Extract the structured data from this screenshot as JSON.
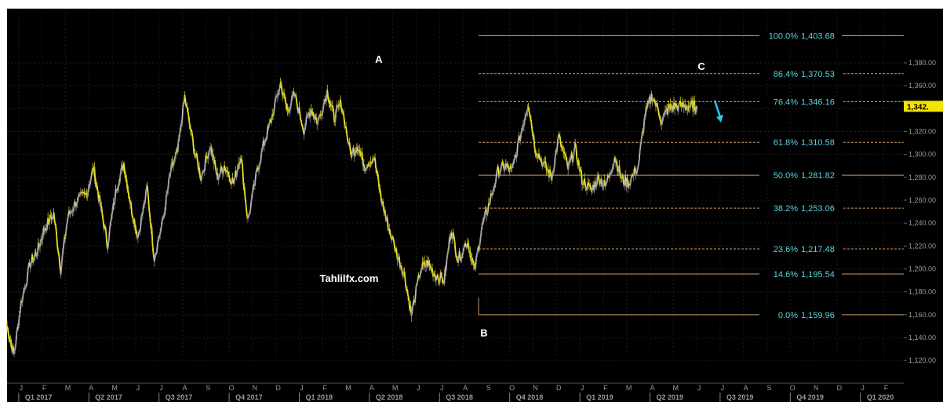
{
  "chart_data": {
    "type": "line",
    "title": "",
    "xlabel": "",
    "ylabel": "",
    "ylim": [
      1110,
      1415
    ],
    "grid": true,
    "colors": {
      "background": "#000000",
      "price_up": "#f2e82a",
      "price_down": "#bdbdbd",
      "fib_line": "#c89a6a",
      "fib_label": "#5fd0e0",
      "axis_text": "#9a9a9a",
      "last_price_box": "#f5e400",
      "arrow": "#2ec8e8",
      "watermark": "#ffffff"
    },
    "y_ticks": [
      "1,120.00",
      "1,140.00",
      "1,160.00",
      "1,180.00",
      "1,200.00",
      "1,220.00",
      "1,240.00",
      "1,260.00",
      "1,280.00",
      "1,300.00",
      "1,320.00",
      "1,340.00",
      "1,360.00",
      "1,380.00"
    ],
    "y_tick_values": [
      1120,
      1140,
      1160,
      1180,
      1200,
      1220,
      1240,
      1260,
      1280,
      1300,
      1320,
      1340,
      1360,
      1380
    ],
    "last_price_label": "1,342.",
    "x_month_labels": [
      "J",
      "F",
      "M",
      "A",
      "M",
      "J",
      "J",
      "A",
      "S",
      "O",
      "N",
      "D",
      "J",
      "F",
      "M",
      "A",
      "M",
      "J",
      "J",
      "A",
      "S",
      "O",
      "N",
      "D",
      "J",
      "F",
      "M",
      "A",
      "M",
      "J",
      "J",
      "A",
      "S",
      "O",
      "N",
      "D",
      "J",
      "F"
    ],
    "x_quarter_labels": [
      "Q1 2017",
      "Q2 2017",
      "Q3 2017",
      "Q4 2017",
      "Q1 2018",
      "Q2 2018",
      "Q3 2018",
      "Q4 2018",
      "Q1 2019",
      "Q2 2019",
      "Q3 2019",
      "Q4 2019",
      "Q1 2020"
    ],
    "price_series": {
      "x_months": [
        0,
        0.3,
        0.6,
        1.0,
        1.3,
        1.6,
        2.0,
        2.3,
        2.6,
        3.0,
        3.4,
        3.7,
        4.0,
        4.3,
        4.7,
        5.0,
        5.3,
        5.6,
        6.0,
        6.3,
        6.7,
        7.0,
        7.3,
        7.6,
        8.0,
        8.3,
        8.7,
        9.0,
        9.3,
        9.7,
        10.0,
        10.3,
        10.7,
        11.0,
        11.3,
        11.7,
        12.0,
        12.3,
        12.7,
        13.0,
        13.3,
        13.7,
        14.0,
        14.3,
        14.7,
        15.0,
        15.3,
        15.7,
        16.0,
        16.3,
        16.7,
        17.0,
        17.3,
        17.7,
        18.0,
        18.3,
        18.7,
        19.0,
        19.3,
        19.7,
        20.0,
        20.3,
        20.6,
        21.0,
        21.3,
        21.6,
        22.0,
        22.3,
        22.6,
        23.0,
        23.3,
        23.6,
        24.0,
        24.3,
        24.6,
        25.0,
        25.3,
        25.6,
        26.0,
        26.3,
        26.6,
        27.0,
        27.3,
        27.6,
        28.0,
        28.3,
        28.6,
        29.0,
        29.3,
        29.5
      ],
      "values": [
        1150,
        1125,
        1170,
        1205,
        1215,
        1235,
        1248,
        1200,
        1245,
        1260,
        1265,
        1288,
        1255,
        1222,
        1272,
        1292,
        1255,
        1228,
        1270,
        1210,
        1245,
        1285,
        1302,
        1350,
        1305,
        1280,
        1308,
        1280,
        1290,
        1275,
        1300,
        1242,
        1285,
        1310,
        1330,
        1362,
        1338,
        1352,
        1322,
        1340,
        1328,
        1355,
        1332,
        1345,
        1300,
        1308,
        1290,
        1298,
        1262,
        1238,
        1212,
        1195,
        1160,
        1200,
        1205,
        1195,
        1190,
        1235,
        1208,
        1225,
        1198,
        1235,
        1255,
        1285,
        1290,
        1285,
        1320,
        1345,
        1305,
        1290,
        1280,
        1315,
        1288,
        1305,
        1278,
        1268,
        1280,
        1272,
        1298,
        1278,
        1275,
        1290,
        1335,
        1352,
        1330,
        1340,
        1342,
        1342,
        1342,
        1342
      ]
    },
    "fib_levels": [
      {
        "label": "100.0%",
        "value": 1403.68,
        "text": "1,403.68",
        "style": "solid"
      },
      {
        "label": "86.4%",
        "value": 1370.53,
        "text": "1,370.53",
        "style": "dashed"
      },
      {
        "label": "76.4%",
        "value": 1346.16,
        "text": "1,346.16",
        "style": "dashed"
      },
      {
        "label": "61.8%",
        "value": 1310.58,
        "text": "1,310.58",
        "style": "dashed"
      },
      {
        "label": "50.0%",
        "value": 1281.82,
        "text": "1,281.82",
        "style": "solid"
      },
      {
        "label": "38.2%",
        "value": 1253.06,
        "text": "1,253.06",
        "style": "dashed"
      },
      {
        "label": "23.6%",
        "value": 1217.48,
        "text": "1,217.48",
        "style": "dashed"
      },
      {
        "label": "14.6%",
        "value": 1195.54,
        "text": "1,195.54",
        "style": "solid"
      },
      {
        "label": "0.0%",
        "value": 1159.96,
        "text": "1,159.96",
        "style": "solid"
      }
    ],
    "annotations": [
      {
        "text": "A",
        "x_month": 15.9,
        "value": 1380
      },
      {
        "text": "B",
        "x_month": 20.4,
        "value": 1141
      },
      {
        "text": "C",
        "x_month": 29.7,
        "value": 1374
      }
    ],
    "watermark": "Tahlilfx.com"
  }
}
